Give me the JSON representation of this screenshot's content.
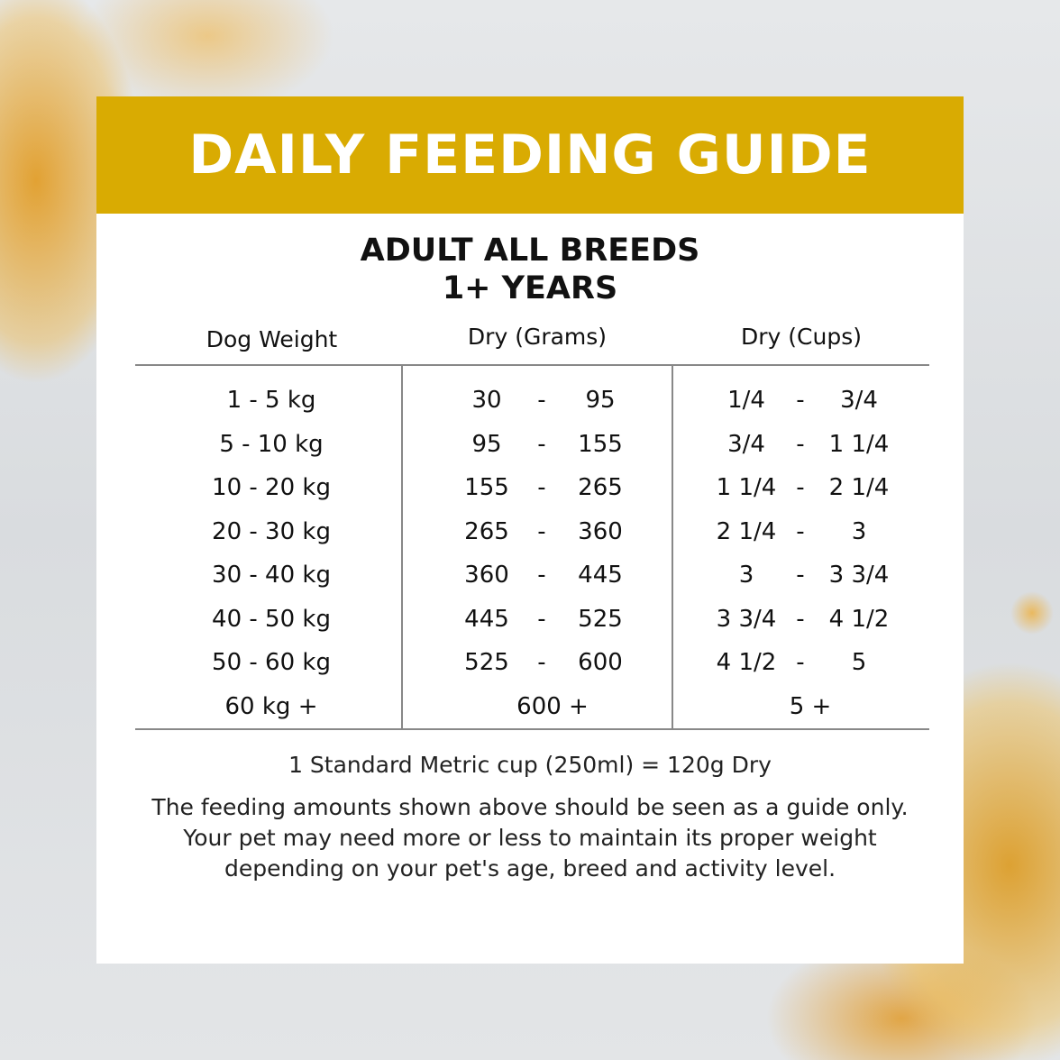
{
  "title": "DAILY FEEDING GUIDE",
  "subtitle_line1": "ADULT ALL BREEDS",
  "subtitle_line2": "1+ YEARS",
  "colors": {
    "banner": "#d9ab02",
    "text": "#111111"
  },
  "table": {
    "headers": [
      "Dog Weight",
      "Dry (Grams)",
      "Dry (Cups)"
    ],
    "rows": [
      {
        "weight": "1 - 5 kg",
        "g_low": "30",
        "g_high": "95",
        "c_low": "1/4",
        "c_high": "3/4"
      },
      {
        "weight": "5 - 10 kg",
        "g_low": "95",
        "g_high": "155",
        "c_low": "3/4",
        "c_high": "1 1/4"
      },
      {
        "weight": "10 - 20 kg",
        "g_low": "155",
        "g_high": "265",
        "c_low": "1 1/4",
        "c_high": "2 1/4"
      },
      {
        "weight": "20 - 30 kg",
        "g_low": "265",
        "g_high": "360",
        "c_low": "2 1/4",
        "c_high": "3"
      },
      {
        "weight": "30 - 40 kg",
        "g_low": "360",
        "g_high": "445",
        "c_low": "3",
        "c_high": "3 3/4"
      },
      {
        "weight": "40 - 50 kg",
        "g_low": "445",
        "g_high": "525",
        "c_low": "3 3/4",
        "c_high": "4 1/2"
      },
      {
        "weight": "50 - 60 kg",
        "g_low": "525",
        "g_high": "600",
        "c_low": "4 1/2",
        "c_high": "5"
      }
    ],
    "last_row": {
      "weight": "60 kg +",
      "grams": "600 +",
      "cups": "5 +"
    },
    "dash": "-"
  },
  "cup_note": "1 Standard Metric cup (250ml) = 120g Dry",
  "disclaimer": "The feeding amounts shown above should be seen as a guide only. Your pet may need more or less to maintain its proper weight depending on your pet's age, breed and activity level."
}
